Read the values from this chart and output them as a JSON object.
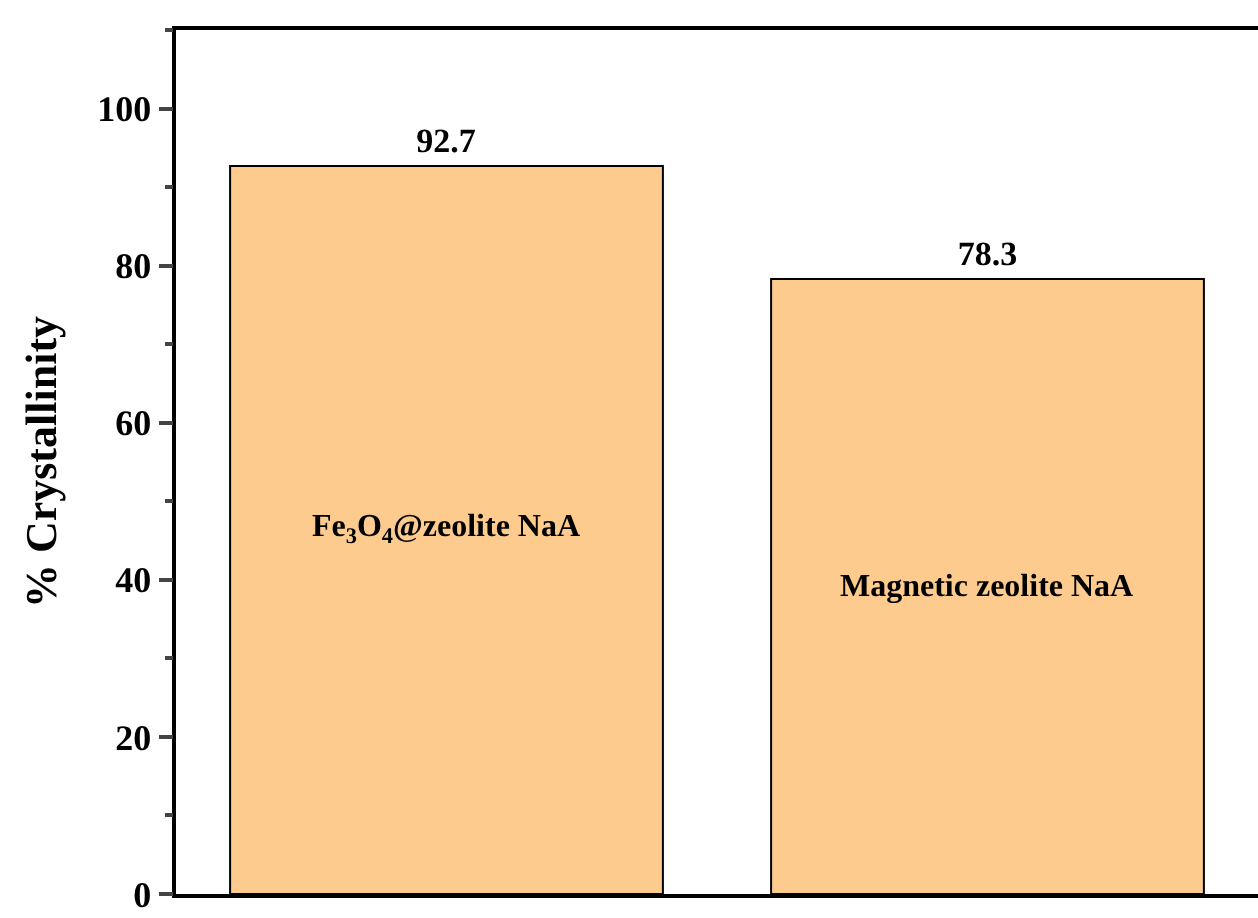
{
  "chart_data": {
    "type": "bar",
    "categories": [
      "Fe$_{3}$O$_{4}$@zeolite NaA",
      "Magnetic zeolite NaA"
    ],
    "values": [
      92.7,
      78.3
    ],
    "color": "#fdcb8e",
    "ylabel": "% Crystallinity",
    "ylim": [
      0,
      110
    ],
    "yticks": [
      0,
      20,
      40,
      60,
      80,
      100
    ],
    "data_labels": true,
    "grid": false,
    "legend": false
  }
}
